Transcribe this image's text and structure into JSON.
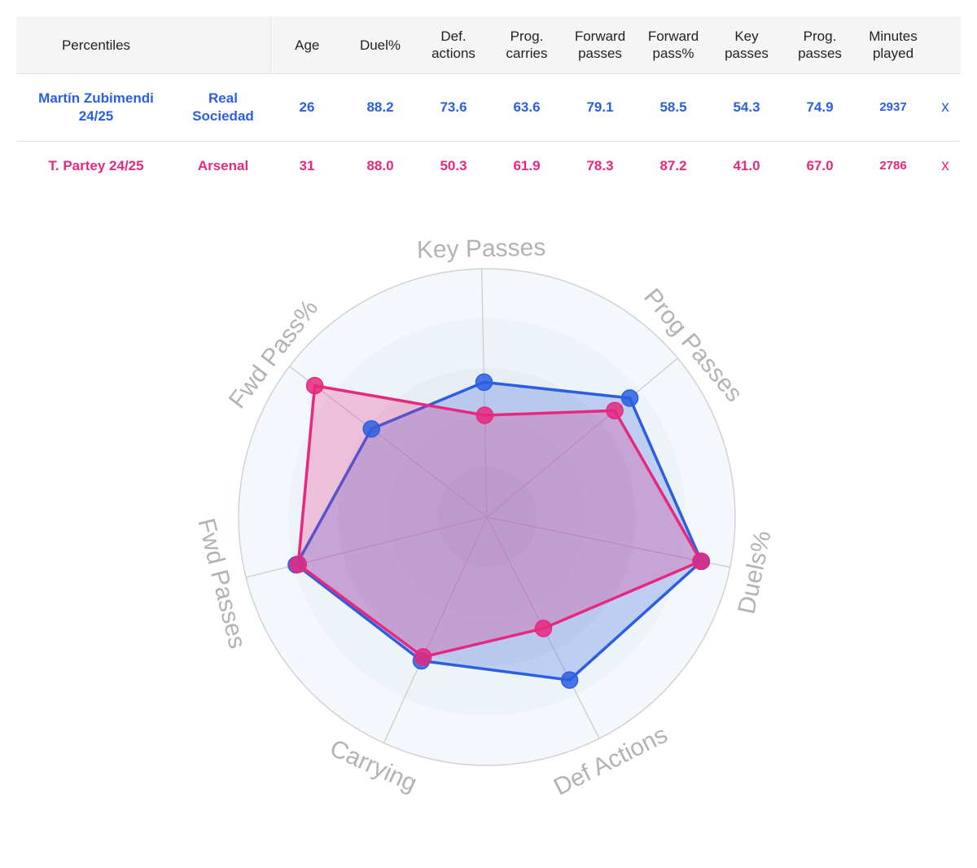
{
  "table": {
    "headers": [
      "Percentiles",
      "",
      "Age",
      "Duel%",
      "Def. actions",
      "Prog. carries",
      "Forward passes",
      "Forward pass%",
      "Key passes",
      "Prog. passes",
      "Minutes played"
    ],
    "header_lines": [
      [
        "Percentiles"
      ],
      [
        ""
      ],
      [
        "Age"
      ],
      [
        "Duel%"
      ],
      [
        "Def.",
        "actions"
      ],
      [
        "Prog.",
        "carries"
      ],
      [
        "Forward",
        "passes"
      ],
      [
        "Forward",
        "pass%"
      ],
      [
        "Key",
        "passes"
      ],
      [
        "Prog.",
        "passes"
      ],
      [
        "Minutes",
        "played"
      ]
    ],
    "rows": [
      {
        "player_lines": [
          "Martín Zubimendi",
          "24/25"
        ],
        "team_lines": [
          "Real",
          "Sociedad"
        ],
        "age": "26",
        "duel_pct": "88.2",
        "def_actions": "73.6",
        "prog_carries": "63.6",
        "forward_passes": "79.1",
        "forward_pass_pct": "58.5",
        "key_passes": "54.3",
        "prog_passes": "74.9",
        "minutes": "2937",
        "remove": "x",
        "color": "#2c5fe0"
      },
      {
        "player_lines": [
          "T. Partey 24/25"
        ],
        "team_lines": [
          "Arsenal"
        ],
        "age": "31",
        "duel_pct": "88.0",
        "def_actions": "50.3",
        "prog_carries": "61.9",
        "forward_passes": "78.3",
        "forward_pass_pct": "87.2",
        "key_passes": "41.0",
        "prog_passes": "67.0",
        "minutes": "2786",
        "remove": "x",
        "color": "#e6287f"
      }
    ]
  },
  "chart_data": {
    "type": "radar",
    "categories": [
      "Key Passes",
      "Prog Passes",
      "Duels%",
      "Def Actions",
      "Carrying",
      "Fwd Passes",
      "Fwd Pass%"
    ],
    "series": [
      {
        "name": "Martín Zubimendi 24/25",
        "values": [
          54.3,
          74.9,
          88.2,
          73.6,
          63.6,
          79.1,
          58.5
        ],
        "color": "#2c5fe0"
      },
      {
        "name": "T. Partey 24/25",
        "values": [
          41.0,
          67.0,
          88.0,
          50.3,
          61.9,
          78.3,
          87.2
        ],
        "color": "#e6287f"
      }
    ],
    "range": [
      0,
      100
    ],
    "grid": true,
    "legend": "none",
    "label_color": "#b3b3b3"
  }
}
